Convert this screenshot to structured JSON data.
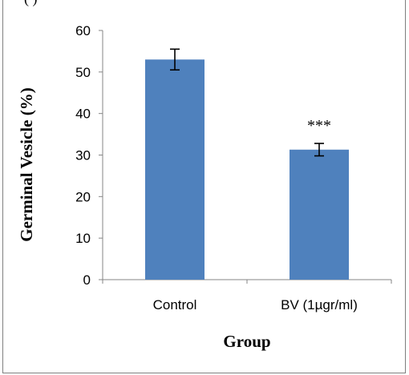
{
  "header_fragment": "(        )",
  "chart_data": {
    "type": "bar",
    "categories": [
      "Control",
      "BV (1µgr/ml)"
    ],
    "series": [
      {
        "values": [
          53,
          31.3
        ],
        "errors": [
          2.5,
          1.5
        ],
        "color": "#4f81bd"
      }
    ],
    "xlabel": "Group",
    "ylabel": "Germinal Vesicle (%)",
    "ylim": [
      0,
      60
    ],
    "yticks": [
      0,
      10,
      20,
      30,
      40,
      50,
      60
    ],
    "annotations": [
      {
        "category_index": 1,
        "text": "***"
      }
    ],
    "grid": false,
    "legend": "none"
  }
}
